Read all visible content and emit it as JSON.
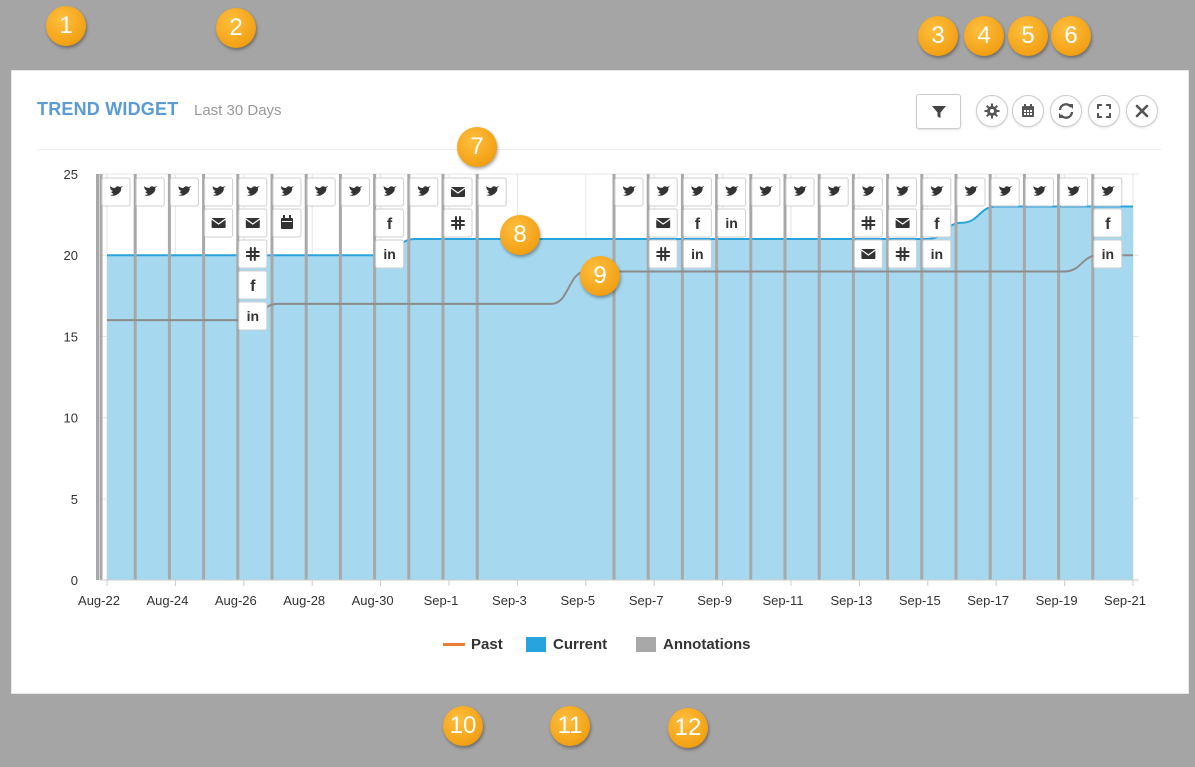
{
  "header": {
    "title": "TREND WIDGET",
    "subtitle": "Last 30 Days"
  },
  "toolbar": {
    "filter_icon": "filter-icon",
    "settings_icon": "gear-icon",
    "calendar_icon": "calendar-icon",
    "refresh_icon": "refresh-icon",
    "fullscreen_icon": "fullscreen-icon",
    "close_icon": "close-icon"
  },
  "callouts": [
    "1",
    "2",
    "3",
    "4",
    "5",
    "6",
    "7",
    "8",
    "9",
    "10",
    "11",
    "12"
  ],
  "colors": {
    "current_line": "#29a3dc",
    "current_fill": "#a6d8ef",
    "past_line": "#8c8c8c",
    "annotation": "#a8a8a8",
    "past_legend": "#ed7d31",
    "title": "#5b9bd5",
    "badge": "#f5a623"
  },
  "chart_data": {
    "type": "area",
    "ylim": [
      0,
      25
    ],
    "yticks": [
      0,
      5,
      10,
      15,
      20,
      25
    ],
    "xtick_labels": [
      "Aug-22",
      "Aug-24",
      "Aug-26",
      "Aug-28",
      "Aug-30",
      "Sep-1",
      "Sep-3",
      "Sep-5",
      "Sep-7",
      "Sep-9",
      "Sep-11",
      "Sep-13",
      "Sep-15",
      "Sep-17",
      "Sep-19",
      "Sep-21"
    ],
    "x": [
      "Aug-22",
      "Aug-23",
      "Aug-24",
      "Aug-25",
      "Aug-26",
      "Aug-27",
      "Aug-28",
      "Aug-29",
      "Aug-30",
      "Aug-31",
      "Sep-1",
      "Sep-2",
      "Sep-3",
      "Sep-4",
      "Sep-5",
      "Sep-6",
      "Sep-7",
      "Sep-8",
      "Sep-9",
      "Sep-10",
      "Sep-11",
      "Sep-12",
      "Sep-13",
      "Sep-14",
      "Sep-15",
      "Sep-16",
      "Sep-17",
      "Sep-18",
      "Sep-19",
      "Sep-20",
      "Sep-21"
    ],
    "series": [
      {
        "name": "Current",
        "values": [
          20,
          20,
          20,
          20,
          20,
          20,
          20,
          20,
          20,
          21,
          21,
          21,
          21,
          21,
          21,
          21,
          21,
          21,
          21,
          21,
          21,
          21,
          21,
          21,
          21,
          22,
          23,
          23,
          23,
          23,
          23
        ]
      },
      {
        "name": "Past",
        "values": [
          16,
          16,
          16,
          16,
          16,
          17,
          17,
          17,
          17,
          17,
          17,
          17,
          17,
          17,
          19,
          19,
          19,
          19,
          19,
          19,
          19,
          19,
          19,
          19,
          19,
          19,
          19,
          19,
          19,
          20,
          20
        ]
      }
    ],
    "annotations": [
      {
        "x": "Aug-22",
        "icons": [
          "twitter"
        ]
      },
      {
        "x": "Aug-23",
        "icons": [
          "twitter"
        ]
      },
      {
        "x": "Aug-24",
        "icons": [
          "twitter"
        ]
      },
      {
        "x": "Aug-25",
        "icons": [
          "twitter",
          "email"
        ]
      },
      {
        "x": "Aug-26",
        "icons": [
          "twitter",
          "email",
          "slack",
          "facebook",
          "linkedin"
        ]
      },
      {
        "x": "Aug-27",
        "icons": [
          "twitter",
          "calendar"
        ]
      },
      {
        "x": "Aug-28",
        "icons": [
          "twitter"
        ]
      },
      {
        "x": "Aug-29",
        "icons": [
          "twitter"
        ]
      },
      {
        "x": "Aug-30",
        "icons": [
          "twitter",
          "facebook",
          "linkedin"
        ]
      },
      {
        "x": "Aug-31",
        "icons": [
          "twitter"
        ]
      },
      {
        "x": "Sep-1",
        "icons": [
          "email",
          "slack"
        ]
      },
      {
        "x": "Sep-2",
        "icons": [
          "twitter"
        ]
      },
      {
        "x": "Sep-6",
        "icons": [
          "twitter"
        ]
      },
      {
        "x": "Sep-7",
        "icons": [
          "twitter",
          "email",
          "slack"
        ]
      },
      {
        "x": "Sep-8",
        "icons": [
          "twitter",
          "facebook",
          "linkedin"
        ]
      },
      {
        "x": "Sep-9",
        "icons": [
          "twitter",
          "linkedin"
        ]
      },
      {
        "x": "Sep-10",
        "icons": [
          "twitter"
        ]
      },
      {
        "x": "Sep-11",
        "icons": [
          "twitter"
        ]
      },
      {
        "x": "Sep-12",
        "icons": [
          "twitter"
        ]
      },
      {
        "x": "Sep-13",
        "icons": [
          "twitter",
          "slack",
          "email"
        ]
      },
      {
        "x": "Sep-14",
        "icons": [
          "twitter",
          "email",
          "slack"
        ]
      },
      {
        "x": "Sep-15",
        "icons": [
          "twitter",
          "facebook",
          "linkedin"
        ]
      },
      {
        "x": "Sep-16",
        "icons": [
          "twitter"
        ]
      },
      {
        "x": "Sep-17",
        "icons": [
          "twitter"
        ]
      },
      {
        "x": "Sep-18",
        "icons": [
          "twitter"
        ]
      },
      {
        "x": "Sep-19",
        "icons": [
          "twitter"
        ]
      },
      {
        "x": "Sep-20",
        "icons": [
          "twitter",
          "facebook",
          "linkedin"
        ]
      }
    ],
    "legend": [
      "Past",
      "Current",
      "Annotations"
    ],
    "legend_position": "bottom"
  }
}
